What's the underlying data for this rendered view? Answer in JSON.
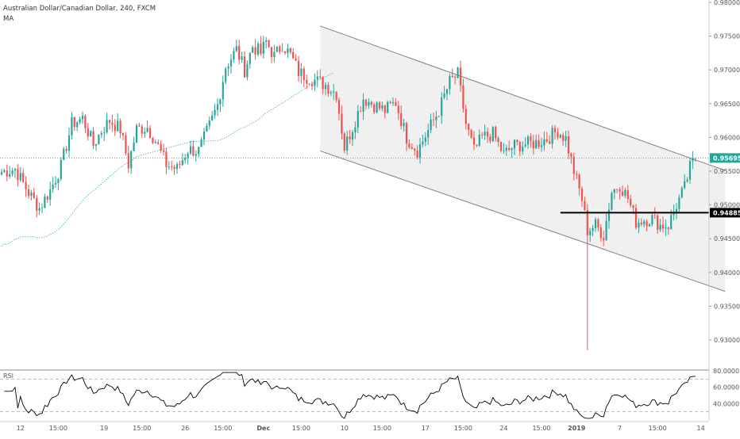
{
  "header": {
    "title": "Australian Dollar/Canadian Dollar, 240, FXCM",
    "indicator": "MA"
  },
  "chart_data": {
    "type": "candlestick",
    "symbol": "Australian Dollar/Canadian Dollar",
    "interval": "240",
    "source": "FXCM",
    "y_ticks": [
      "0.98000",
      "0.97500",
      "0.97000",
      "0.96500",
      "0.96000",
      "0.95500",
      "0.95000",
      "0.94500",
      "0.94000",
      "0.93500",
      "0.93000"
    ],
    "y_tick_values": [
      0.98,
      0.975,
      0.97,
      0.965,
      0.96,
      0.955,
      0.95,
      0.945,
      0.94,
      0.935,
      0.93
    ],
    "ylim": [
      0.9265,
      0.9805
    ],
    "x_ticks": [
      "12",
      "15:00",
      "19",
      "15:00",
      "26",
      "15:00",
      "Dec",
      "15:00",
      "10",
      "15:00",
      "17",
      "15:00",
      "24",
      "15:00",
      "2019",
      "7",
      "15:00",
      "14"
    ],
    "x_tick_bold": [
      "Dec",
      "2019"
    ],
    "n_bars": 258,
    "x_tick_bars": [
      7,
      21,
      38,
      52,
      68,
      82,
      97,
      111,
      127,
      141,
      157,
      171,
      186,
      200,
      213,
      229,
      243,
      259
    ],
    "price_tags": [
      {
        "label": "0.95695",
        "value": 0.95695,
        "style": "current",
        "color": "#26a69a"
      },
      {
        "label": "0.94885",
        "value": 0.94885,
        "style": "level",
        "color": "#000000"
      }
    ],
    "horizontal_level": {
      "value": 0.94885,
      "from_bar": 207
    },
    "channel": {
      "upper": [
        {
          "bar": 118,
          "price": 0.9765
        },
        {
          "bar": 268,
          "price": 0.9551
        }
      ],
      "lower": [
        {
          "bar": 118,
          "price": 0.958
        },
        {
          "bar": 268,
          "price": 0.9372
        }
      ]
    },
    "anchors": [
      [
        0,
        0.9549
      ],
      [
        5,
        0.9553
      ],
      [
        10,
        0.9518
      ],
      [
        14,
        0.9495
      ],
      [
        18,
        0.9522
      ],
      [
        22,
        0.9557
      ],
      [
        26,
        0.962
      ],
      [
        30,
        0.9628
      ],
      [
        34,
        0.9589
      ],
      [
        37,
        0.961
      ],
      [
        40,
        0.9625
      ],
      [
        44,
        0.9612
      ],
      [
        47,
        0.956
      ],
      [
        50,
        0.9612
      ],
      [
        54,
        0.9615
      ],
      [
        57,
        0.9595
      ],
      [
        61,
        0.956
      ],
      [
        65,
        0.9553
      ],
      [
        69,
        0.9582
      ],
      [
        73,
        0.958
      ],
      [
        77,
        0.9617
      ],
      [
        80,
        0.9648
      ],
      [
        83,
        0.9705
      ],
      [
        87,
        0.973
      ],
      [
        90,
        0.97
      ],
      [
        93,
        0.9735
      ],
      [
        96,
        0.9725
      ],
      [
        98,
        0.9742
      ],
      [
        101,
        0.972
      ],
      [
        104,
        0.9738
      ],
      [
        107,
        0.9722
      ],
      [
        110,
        0.9697
      ],
      [
        113,
        0.969
      ],
      [
        117,
        0.9683
      ],
      [
        120,
        0.9678
      ],
      [
        124,
        0.9665
      ],
      [
        127,
        0.9585
      ],
      [
        130,
        0.9615
      ],
      [
        134,
        0.9658
      ],
      [
        138,
        0.9648
      ],
      [
        142,
        0.964
      ],
      [
        146,
        0.9652
      ],
      [
        150,
        0.96
      ],
      [
        154,
        0.958
      ],
      [
        158,
        0.961
      ],
      [
        162,
        0.964
      ],
      [
        166,
        0.9682
      ],
      [
        169,
        0.9693
      ],
      [
        172,
        0.962
      ],
      [
        175,
        0.958
      ],
      [
        178,
        0.96
      ],
      [
        182,
        0.9605
      ],
      [
        186,
        0.9575
      ],
      [
        190,
        0.9588
      ],
      [
        194,
        0.959
      ],
      [
        198,
        0.9592
      ],
      [
        202,
        0.9598
      ],
      [
        206,
        0.961
      ],
      [
        209,
        0.9598
      ],
      [
        212,
        0.955
      ],
      [
        215,
        0.9508
      ],
      [
        217,
        0.9462
      ],
      [
        220,
        0.947
      ],
      [
        223,
        0.9455
      ],
      [
        226,
        0.952
      ],
      [
        229,
        0.953
      ],
      [
        232,
        0.951
      ],
      [
        235,
        0.9475
      ],
      [
        238,
        0.9478
      ],
      [
        241,
        0.948
      ],
      [
        244,
        0.947
      ],
      [
        247,
        0.947
      ],
      [
        250,
        0.95
      ],
      [
        253,
        0.9525
      ],
      [
        255,
        0.9555
      ],
      [
        257,
        0.95695
      ]
    ],
    "spike_low": {
      "bar": 217,
      "price": 0.9285
    },
    "rsi": {
      "label": "RSI",
      "ylim": [
        20,
        80
      ],
      "y_ticks": [
        "80.0000",
        "60.0000",
        "40.0000"
      ],
      "y_tick_values": [
        80,
        60,
        40
      ],
      "bands": [
        70,
        30
      ],
      "color": "#000000"
    },
    "colors": {
      "up": "#26a69a",
      "down": "#ef5350",
      "ma": "#26a69a",
      "channel_fill": "#f0f0f0",
      "channel_line": "#808080"
    }
  }
}
